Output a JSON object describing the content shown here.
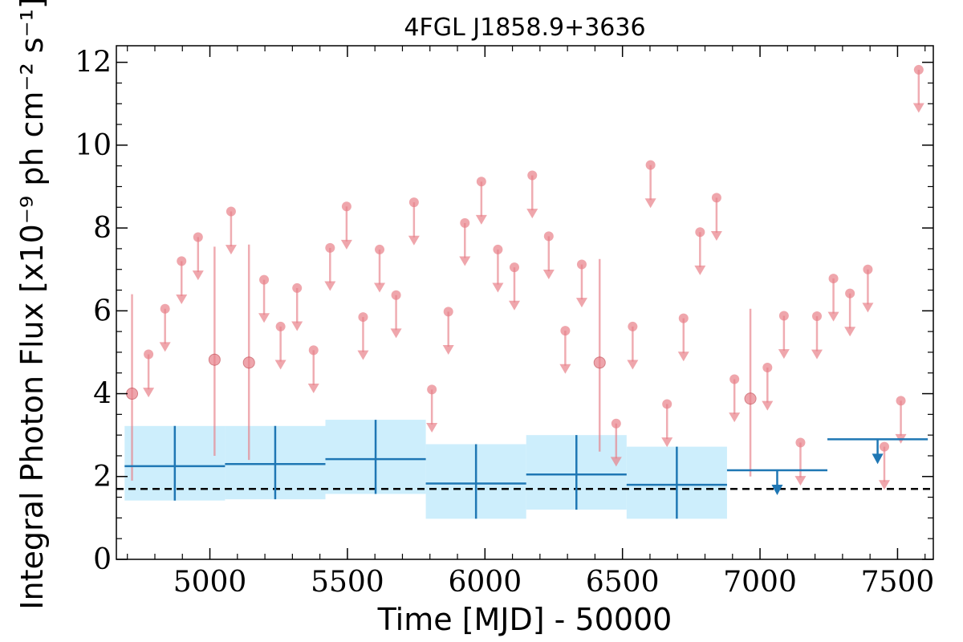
{
  "chart_data": {
    "type": "scatter",
    "title": "4FGL J1858.9+3636",
    "xlabel": "Time [MJD] - 50000",
    "ylabel": "Integral Photon Flux [x10⁻⁹ ph cm⁻² s⁻¹]",
    "xlim": [
      4660,
      7630
    ],
    "ylim": [
      0,
      12.4
    ],
    "x_ticks": [
      5000,
      5500,
      6000,
      6500,
      7000,
      7500
    ],
    "y_ticks": [
      0,
      2,
      4,
      6,
      8,
      10,
      12
    ],
    "x_tick_labels": [
      "5000",
      "5500",
      "6000",
      "6500",
      "7000",
      "7500"
    ],
    "y_tick_labels": [
      "0",
      "2",
      "4",
      "6",
      "8",
      "10",
      "12"
    ],
    "grid": false,
    "colors": {
      "fine_bins": "#e88089",
      "coarse_bins": "#1f77b4",
      "coarse_band": "#cdeefc",
      "mean_line": "#000000"
    },
    "mean_flux_line": 1.7,
    "fine_detections": [
      {
        "t": 4717,
        "flux": 4.0,
        "lo": 1.9,
        "hi": 6.4
      },
      {
        "t": 5017,
        "flux": 4.82,
        "lo": 2.5,
        "hi": 7.55
      },
      {
        "t": 5142,
        "flux": 4.75,
        "lo": 2.4,
        "hi": 7.6
      },
      {
        "t": 6417,
        "flux": 4.75,
        "lo": 2.6,
        "hi": 7.25
      },
      {
        "t": 6965,
        "flux": 3.88,
        "lo": 2.0,
        "hi": 6.05
      }
    ],
    "fine_upper_limits": [
      {
        "t": 4777,
        "flux": 4.95
      },
      {
        "t": 4837,
        "flux": 6.05
      },
      {
        "t": 4897,
        "flux": 7.2
      },
      {
        "t": 4957,
        "flux": 7.78
      },
      {
        "t": 5077,
        "flux": 8.4
      },
      {
        "t": 5197,
        "flux": 6.75
      },
      {
        "t": 5257,
        "flux": 5.62
      },
      {
        "t": 5317,
        "flux": 6.55
      },
      {
        "t": 5377,
        "flux": 5.05
      },
      {
        "t": 5437,
        "flux": 7.52
      },
      {
        "t": 5497,
        "flux": 8.52
      },
      {
        "t": 5557,
        "flux": 5.85
      },
      {
        "t": 5617,
        "flux": 7.48
      },
      {
        "t": 5677,
        "flux": 6.38
      },
      {
        "t": 5742,
        "flux": 8.62
      },
      {
        "t": 5807,
        "flux": 4.1
      },
      {
        "t": 5867,
        "flux": 5.98
      },
      {
        "t": 5927,
        "flux": 8.12
      },
      {
        "t": 5987,
        "flux": 9.12
      },
      {
        "t": 6047,
        "flux": 7.48
      },
      {
        "t": 6107,
        "flux": 7.05
      },
      {
        "t": 6172,
        "flux": 9.27
      },
      {
        "t": 6232,
        "flux": 7.8
      },
      {
        "t": 6292,
        "flux": 5.52
      },
      {
        "t": 6352,
        "flux": 7.12
      },
      {
        "t": 6477,
        "flux": 3.28
      },
      {
        "t": 6537,
        "flux": 5.62
      },
      {
        "t": 6602,
        "flux": 9.52
      },
      {
        "t": 6662,
        "flux": 3.75
      },
      {
        "t": 6722,
        "flux": 5.82
      },
      {
        "t": 6782,
        "flux": 7.9
      },
      {
        "t": 6842,
        "flux": 8.73
      },
      {
        "t": 6907,
        "flux": 4.35
      },
      {
        "t": 7027,
        "flux": 4.63
      },
      {
        "t": 7087,
        "flux": 5.88
      },
      {
        "t": 7147,
        "flux": 2.82
      },
      {
        "t": 7207,
        "flux": 5.87
      },
      {
        "t": 7267,
        "flux": 6.78
      },
      {
        "t": 7327,
        "flux": 6.42
      },
      {
        "t": 7392,
        "flux": 7.0
      },
      {
        "t": 7452,
        "flux": 2.72
      },
      {
        "t": 7512,
        "flux": 3.83
      },
      {
        "t": 7577,
        "flux": 11.82
      }
    ],
    "coarse_detections": [
      {
        "t_start": 4690,
        "t_end": 5055,
        "flux": 2.25,
        "lo": 1.42,
        "hi": 3.22
      },
      {
        "t_start": 5055,
        "t_end": 5420,
        "flux": 2.3,
        "lo": 1.45,
        "hi": 3.22
      },
      {
        "t_start": 5420,
        "t_end": 5785,
        "flux": 2.42,
        "lo": 1.58,
        "hi": 3.37
      },
      {
        "t_start": 5785,
        "t_end": 6150,
        "flux": 1.83,
        "lo": 0.98,
        "hi": 2.78
      },
      {
        "t_start": 6150,
        "t_end": 6515,
        "flux": 2.05,
        "lo": 1.2,
        "hi": 3.0
      },
      {
        "t_start": 6515,
        "t_end": 6880,
        "flux": 1.8,
        "lo": 0.98,
        "hi": 2.72
      }
    ],
    "coarse_upper_limits": [
      {
        "t_start": 6880,
        "t_end": 7245,
        "flux": 2.15
      },
      {
        "t_start": 7245,
        "t_end": 7610,
        "flux": 2.9
      }
    ]
  }
}
